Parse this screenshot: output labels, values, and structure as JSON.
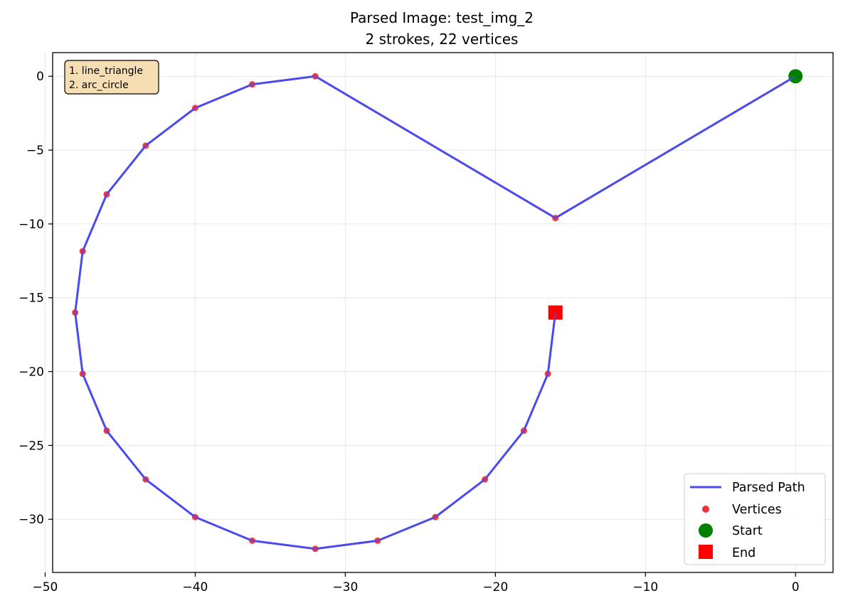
{
  "chart_data": {
    "type": "line",
    "title_line1": "Parsed Image: test_img_2",
    "title_line2": "2 strokes, 22 vertices",
    "xlabel": "",
    "ylabel": "",
    "xlim": [
      -49.5,
      2.5
    ],
    "ylim": [
      -33.6,
      1.6
    ],
    "xticks": [
      -50,
      -40,
      -30,
      -20,
      -10,
      0
    ],
    "yticks": [
      0,
      -5,
      -10,
      -15,
      -20,
      -25,
      -30
    ],
    "grid": true,
    "legend_placement": "lower-right",
    "colors": {
      "path": "#4a4aee",
      "vertex": "#ee2f36",
      "start": "#008000",
      "end": "#ff0000",
      "note_box": "#f5deb3"
    },
    "series": [
      {
        "name": "Parsed Path",
        "points": [
          [
            0,
            0
          ],
          [
            -16,
            -9.6
          ],
          [
            -32,
            0
          ],
          [
            -36.2,
            -0.55
          ],
          [
            -40,
            -2.15
          ],
          [
            -43.3,
            -4.7
          ],
          [
            -45.9,
            -8.0
          ],
          [
            -47.5,
            -11.85
          ],
          [
            -48,
            -16
          ],
          [
            -47.5,
            -20.15
          ],
          [
            -45.9,
            -24.0
          ],
          [
            -43.3,
            -27.3
          ],
          [
            -40,
            -29.85
          ],
          [
            -36.2,
            -31.45
          ],
          [
            -32,
            -32
          ],
          [
            -27.85,
            -31.45
          ],
          [
            -24,
            -29.85
          ],
          [
            -20.7,
            -27.3
          ],
          [
            -18.1,
            -24.0
          ],
          [
            -16.5,
            -20.15
          ],
          [
            -16,
            -16
          ]
        ]
      },
      {
        "name": "Vertices",
        "points": [
          [
            0,
            0
          ],
          [
            -16,
            -9.6
          ],
          [
            -32,
            0
          ],
          [
            -36.2,
            -0.55
          ],
          [
            -40,
            -2.15
          ],
          [
            -43.3,
            -4.7
          ],
          [
            -45.9,
            -8.0
          ],
          [
            -47.5,
            -11.85
          ],
          [
            -48,
            -16
          ],
          [
            -47.5,
            -20.15
          ],
          [
            -45.9,
            -24.0
          ],
          [
            -43.3,
            -27.3
          ],
          [
            -40,
            -29.85
          ],
          [
            -36.2,
            -31.45
          ],
          [
            -32,
            -32
          ],
          [
            -27.85,
            -31.45
          ],
          [
            -24,
            -29.85
          ],
          [
            -20.7,
            -27.3
          ],
          [
            -18.1,
            -24.0
          ],
          [
            -16.5,
            -20.15
          ]
        ]
      },
      {
        "name": "Start",
        "points": [
          [
            0,
            0
          ]
        ]
      },
      {
        "name": "End",
        "points": [
          [
            -16,
            -16
          ]
        ]
      }
    ],
    "legend": [
      "Parsed Path",
      "Vertices",
      "Start",
      "End"
    ],
    "annotation_lines": [
      "1. line_triangle",
      "2. arc_circle"
    ]
  }
}
